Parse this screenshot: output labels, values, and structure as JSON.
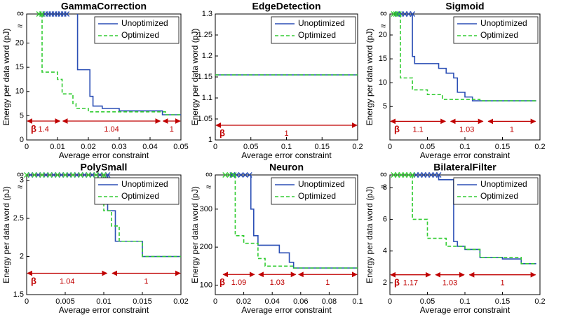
{
  "chart_data": [
    {
      "type": "line",
      "title": "GammaCorrection",
      "xlabel": "Average error constraint",
      "ylabel": "Energy per data word (pJ)",
      "xlim": [
        0,
        0.05
      ],
      "xticks": [
        0,
        0.01,
        0.02,
        0.03,
        0.04,
        0.05
      ],
      "ylim": [
        0,
        26
      ],
      "yticks": [
        0,
        5,
        10,
        15,
        20,
        {
          "value": 26,
          "label": "∞"
        }
      ],
      "ybreak": "≈",
      "legend": "upper right",
      "series": [
        {
          "name": "Unoptimized",
          "color": "#2b4fb5",
          "dash": false,
          "x": [
            0.0165,
            0.0205,
            0.0215,
            0.0245,
            0.03,
            0.044,
            0.05
          ],
          "values": [
            14.5,
            9,
            7,
            6.5,
            6,
            5.2,
            5.2
          ],
          "inf_x": [
            0.005,
            0.006,
            0.007,
            0.008,
            0.009,
            0.01,
            0.011,
            0.012,
            0.013
          ]
        },
        {
          "name": "Optimized",
          "color": "#33cc33",
          "dash": true,
          "x": [
            0.005,
            0.01,
            0.0115,
            0.015,
            0.016,
            0.02,
            0.045,
            0.05
          ],
          "values": [
            14,
            12.5,
            9.5,
            7.5,
            6.5,
            5.8,
            5.2,
            5.2
          ],
          "inf_x": [
            0.004,
            0.005
          ]
        }
      ],
      "beta": {
        "label": "β",
        "y": 3.9,
        "spans": [
          {
            "x0": 0,
            "x1": 0.011,
            "label": "1.4"
          },
          {
            "x0": 0.0115,
            "x1": 0.0435,
            "label": "1.04"
          },
          {
            "x0": 0.044,
            "x1": 0.05,
            "label": "1"
          }
        ]
      }
    },
    {
      "type": "line",
      "title": "EdgeDetection",
      "xlabel": "Average error constraint",
      "ylabel": "Energy per data word (pJ)",
      "xlim": [
        0,
        0.2
      ],
      "xticks": [
        0,
        0.05,
        0.1,
        0.15,
        0.2
      ],
      "ylim": [
        1,
        1.3
      ],
      "yticks": [
        1,
        1.05,
        1.1,
        1.15,
        1.2,
        1.25,
        1.3
      ],
      "legend": "upper right",
      "series": [
        {
          "name": "Unoptimized",
          "color": "#2b4fb5",
          "dash": false,
          "x": [
            0,
            0.2
          ],
          "values": [
            1.155,
            1.155
          ],
          "inf_x": []
        },
        {
          "name": "Optimized",
          "color": "#33cc33",
          "dash": true,
          "x": [
            0,
            0.2
          ],
          "values": [
            1.155,
            1.155
          ],
          "inf_x": []
        }
      ],
      "beta": {
        "label": "β",
        "y": 1.035,
        "spans": [
          {
            "x0": 0,
            "x1": 0.2,
            "label": "1"
          }
        ]
      }
    },
    {
      "type": "line",
      "title": "Sigmoid",
      "xlabel": "Average error constraint",
      "ylabel": "Energy per data word (pJ)",
      "xlim": [
        0,
        0.2
      ],
      "xticks": [
        0,
        0.05,
        0.1,
        0.15,
        0.2
      ],
      "ylim": [
        -2,
        24.4
      ],
      "yticks": [
        5,
        10,
        15,
        20,
        {
          "value": 24.4,
          "label": "∞"
        }
      ],
      "ybreak": "≈",
      "legend": "upper right",
      "series": [
        {
          "name": "Unoptimized",
          "color": "#2b4fb5",
          "dash": false,
          "x": [
            0.03,
            0.033,
            0.065,
            0.075,
            0.085,
            0.09,
            0.1,
            0.11,
            0.195
          ],
          "values": [
            15.5,
            14,
            13,
            12,
            11,
            8,
            7,
            6.2,
            6.2
          ],
          "inf_x": [
            0.01,
            0.015,
            0.02,
            0.025,
            0.03
          ]
        },
        {
          "name": "Optimized",
          "color": "#33cc33",
          "dash": true,
          "x": [
            0.014,
            0.03,
            0.05,
            0.07,
            0.12,
            0.195
          ],
          "values": [
            11,
            8.5,
            7.5,
            6.5,
            6.2,
            6.2
          ],
          "inf_x": [
            0.005,
            0.008,
            0.012
          ]
        }
      ],
      "beta": {
        "label": "β",
        "y": 1.9,
        "spans": [
          {
            "x0": 0,
            "x1": 0.075,
            "label": "1.1"
          },
          {
            "x0": 0.08,
            "x1": 0.125,
            "label": "1.03"
          },
          {
            "x0": 0.13,
            "x1": 0.195,
            "label": "1"
          }
        ]
      }
    },
    {
      "type": "line",
      "title": "PolySmall",
      "xlabel": "Average error constraint",
      "ylabel": "Energy per data word (pJ)",
      "xlim": [
        0,
        0.02
      ],
      "xticks": [
        0,
        0.005,
        0.01,
        0.015,
        0.02
      ],
      "ylim": [
        1.5,
        3.07
      ],
      "yticks": [
        1.5,
        2,
        2.5,
        3,
        {
          "value": 3.07,
          "label": "∞"
        }
      ],
      "ybreak": "≈",
      "legend": "upper right",
      "series": [
        {
          "name": "Unoptimized",
          "color": "#2b4fb5",
          "dash": false,
          "x": [
            0.0105,
            0.0115,
            0.015,
            0.02
          ],
          "values": [
            2.6,
            2.2,
            2.0,
            2.0
          ],
          "inf_x": [
            0.0005,
            0.0015,
            0.0025,
            0.0035,
            0.0045,
            0.0055,
            0.0065,
            0.0075,
            0.0085,
            0.0095,
            0.0105
          ]
        },
        {
          "name": "Optimized",
          "color": "#33cc33",
          "dash": true,
          "x": [
            0.01,
            0.011,
            0.012,
            0.015,
            0.02
          ],
          "values": [
            2.6,
            2.4,
            2.2,
            2.0,
            2.0
          ],
          "inf_x": [
            0,
            0.001,
            0.002,
            0.003,
            0.004,
            0.005,
            0.006,
            0.007,
            0.008,
            0.009,
            0.01
          ]
        }
      ],
      "beta": {
        "label": "β",
        "y": 1.78,
        "spans": [
          {
            "x0": 0,
            "x1": 0.0105,
            "label": "1.04"
          },
          {
            "x0": 0.011,
            "x1": 0.02,
            "label": "1"
          }
        ]
      }
    },
    {
      "type": "line",
      "title": "Neuron",
      "xlabel": "Average error constraint",
      "ylabel": "Energy per data word (pJ)",
      "xlim": [
        0,
        0.1
      ],
      "xticks": [
        0,
        0.02,
        0.04,
        0.06,
        0.08,
        0.1
      ],
      "ylim": [
        75,
        390
      ],
      "yticks": [
        100,
        200,
        300,
        {
          "value": 390,
          "label": "∞"
        }
      ],
      "ybreak": "≈",
      "legend": "upper right",
      "series": [
        {
          "name": "Unoptimized",
          "color": "#2b4fb5",
          "dash": false,
          "x": [
            0.025,
            0.027,
            0.03,
            0.045,
            0.052,
            0.055,
            0.1
          ],
          "values": [
            300,
            230,
            205,
            185,
            160,
            145,
            145
          ],
          "inf_x": [
            0.012,
            0.015,
            0.018,
            0.021,
            0.024
          ]
        },
        {
          "name": "Optimized",
          "color": "#33cc33",
          "dash": true,
          "x": [
            0.014,
            0.02,
            0.03,
            0.035,
            0.055,
            0.1
          ],
          "values": [
            230,
            210,
            170,
            150,
            145,
            145
          ],
          "inf_x": [
            0.007,
            0.01,
            0.013
          ]
        }
      ],
      "beta": {
        "label": "β",
        "y": 128,
        "spans": [
          {
            "x0": 0.005,
            "x1": 0.028,
            "label": "1.09"
          },
          {
            "x0": 0.03,
            "x1": 0.057,
            "label": "1.03"
          },
          {
            "x0": 0.058,
            "x1": 0.1,
            "label": "1"
          }
        ]
      }
    },
    {
      "type": "line",
      "title": "BilateralFilter",
      "xlabel": "Average error constraint",
      "ylabel": "Energy per data word (pJ)",
      "xlim": [
        0,
        0.2
      ],
      "xticks": [
        0,
        0.05,
        0.1,
        0.15,
        0.2
      ],
      "ylim": [
        1.25,
        8.8
      ],
      "yticks": [
        2,
        4,
        6,
        8,
        {
          "value": 8.8,
          "label": "∞"
        }
      ],
      "ybreak": "≈",
      "legend": "upper right",
      "series": [
        {
          "name": "Unoptimized",
          "color": "#2b4fb5",
          "dash": false,
          "x": [
            0.065,
            0.085,
            0.09,
            0.1,
            0.12,
            0.15,
            0.175,
            0.195
          ],
          "values": [
            8.5,
            4.6,
            4.3,
            4.1,
            3.6,
            3.5,
            3.2,
            3.2
          ],
          "inf_x": [
            0.035,
            0.04,
            0.045,
            0.05,
            0.055,
            0.06,
            0.065
          ]
        },
        {
          "name": "Optimized",
          "color": "#33cc33",
          "dash": true,
          "x": [
            0.03,
            0.05,
            0.075,
            0.1,
            0.12,
            0.175,
            0.195
          ],
          "values": [
            6.0,
            4.8,
            4.3,
            4.1,
            3.6,
            3.2,
            3.2
          ],
          "inf_x": [
            0.005,
            0.01,
            0.015,
            0.02,
            0.025,
            0.03
          ]
        }
      ],
      "beta": {
        "label": "β",
        "y": 2.5,
        "spans": [
          {
            "x0": 0,
            "x1": 0.055,
            "label": "1.17"
          },
          {
            "x0": 0.06,
            "x1": 0.1,
            "label": "1.03"
          },
          {
            "x0": 0.105,
            "x1": 0.195,
            "label": "1"
          }
        ]
      }
    }
  ]
}
